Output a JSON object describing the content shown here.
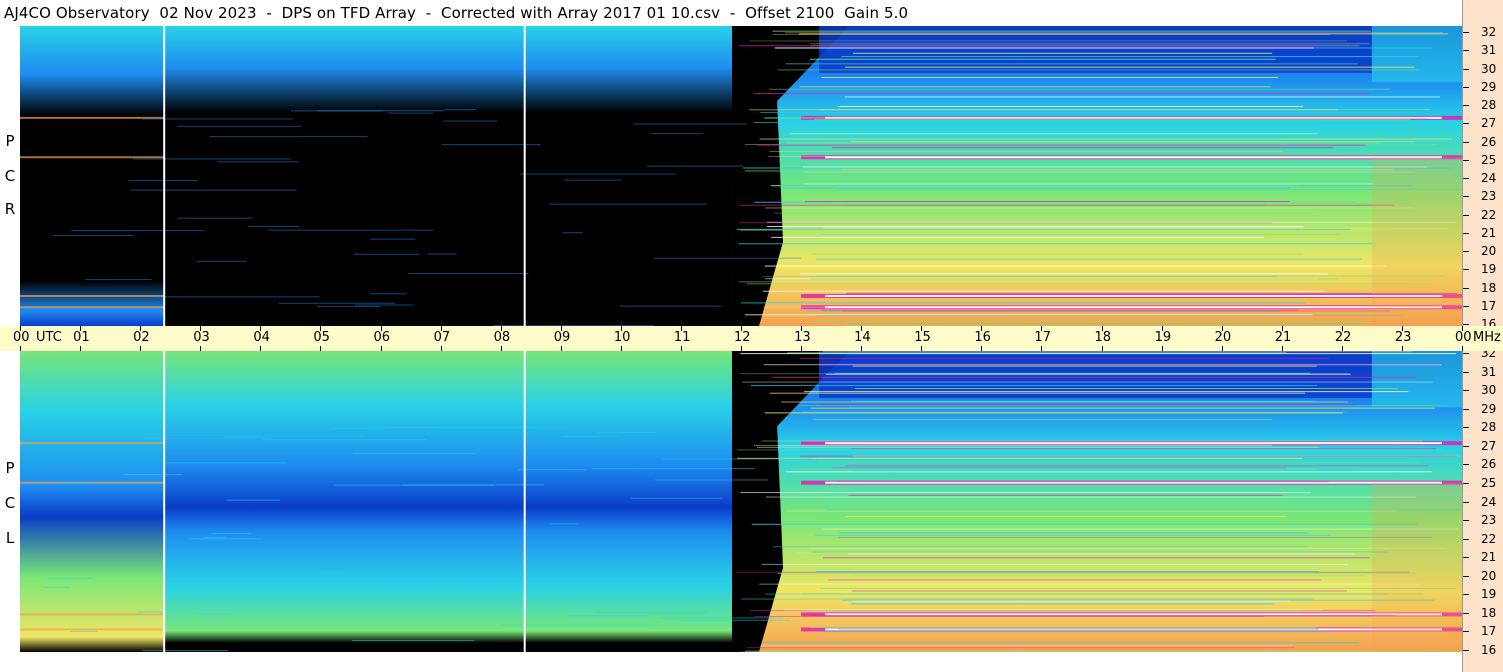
{
  "title": "AJ4CO Observatory  02 Nov 2023  -  DPS on TFD Array  -  Corrected with Array 2017 01 10.csv  -  Offset 2100  Gain 5.0",
  "panel_labels": {
    "top": [
      "R",
      "C",
      "P"
    ],
    "bottom": [
      "L",
      "C",
      "P"
    ]
  },
  "time_axis": {
    "labels": [
      "00",
      "UTC",
      "01",
      "02",
      "03",
      "04",
      "05",
      "06",
      "07",
      "08",
      "09",
      "10",
      "11",
      "12",
      "13",
      "14",
      "15",
      "16",
      "17",
      "18",
      "19",
      "20",
      "21",
      "22",
      "23",
      "00",
      "MHz"
    ]
  },
  "freq_axis": {
    "labels": [
      "32",
      "31",
      "30",
      "29",
      "28",
      "27",
      "26",
      "25",
      "24",
      "23",
      "22",
      "21",
      "20",
      "19",
      "18",
      "17",
      "16"
    ]
  },
  "colors": {
    "quiet_sky": "#000000",
    "deep_blue": "#0a3cc8",
    "mid_blue": "#1e8cf0",
    "cyan": "#28d2e6",
    "green": "#78e678",
    "yellow": "#f0e664",
    "orange": "#f5a050",
    "magenta": "#e61eb4",
    "white": "#ffffff",
    "axis_bg": "#fde3cc",
    "time_bar_bg": "#fffccb"
  },
  "chart_data": {
    "type": "heatmap",
    "title": "AJ4CO Observatory  02 Nov 2023  -  DPS on TFD Array  -  Corrected with Array 2017 01 10.csv  -  Offset 2100  Gain 5.0",
    "x": {
      "unit": "UTC",
      "range": [
        0,
        24
      ],
      "ticks": [
        "00",
        "01",
        "02",
        "03",
        "04",
        "05",
        "06",
        "07",
        "08",
        "09",
        "10",
        "11",
        "12",
        "13",
        "14",
        "15",
        "16",
        "17",
        "18",
        "19",
        "20",
        "21",
        "22",
        "23",
        "00"
      ]
    },
    "y": {
      "unit": "MHz",
      "range": [
        16,
        32
      ],
      "ticks": [
        32,
        31,
        30,
        29,
        28,
        27,
        26,
        25,
        24,
        23,
        22,
        21,
        20,
        19,
        18,
        17,
        16
      ]
    },
    "panels": [
      {
        "name": "RCP",
        "night_quiet_period_utc": [
          2.4,
          11.85
        ],
        "vertical_markers_utc": [
          2.4,
          8.4
        ],
        "interference_bands_mhz": [
          27.1,
          17.6,
          17.0,
          25.0
        ],
        "sunrise_ramp_utc": [
          11.8,
          13.6
        ]
      },
      {
        "name": "LCP",
        "quiet_period_utc": [
          11.85,
          12.5
        ],
        "vertical_markers_utc": [
          2.4,
          8.4
        ],
        "interference_bands_mhz": [
          27.1,
          18.0,
          17.2,
          25.0
        ],
        "sunrise_ramp_utc": [
          11.8,
          13.6
        ]
      }
    ]
  }
}
